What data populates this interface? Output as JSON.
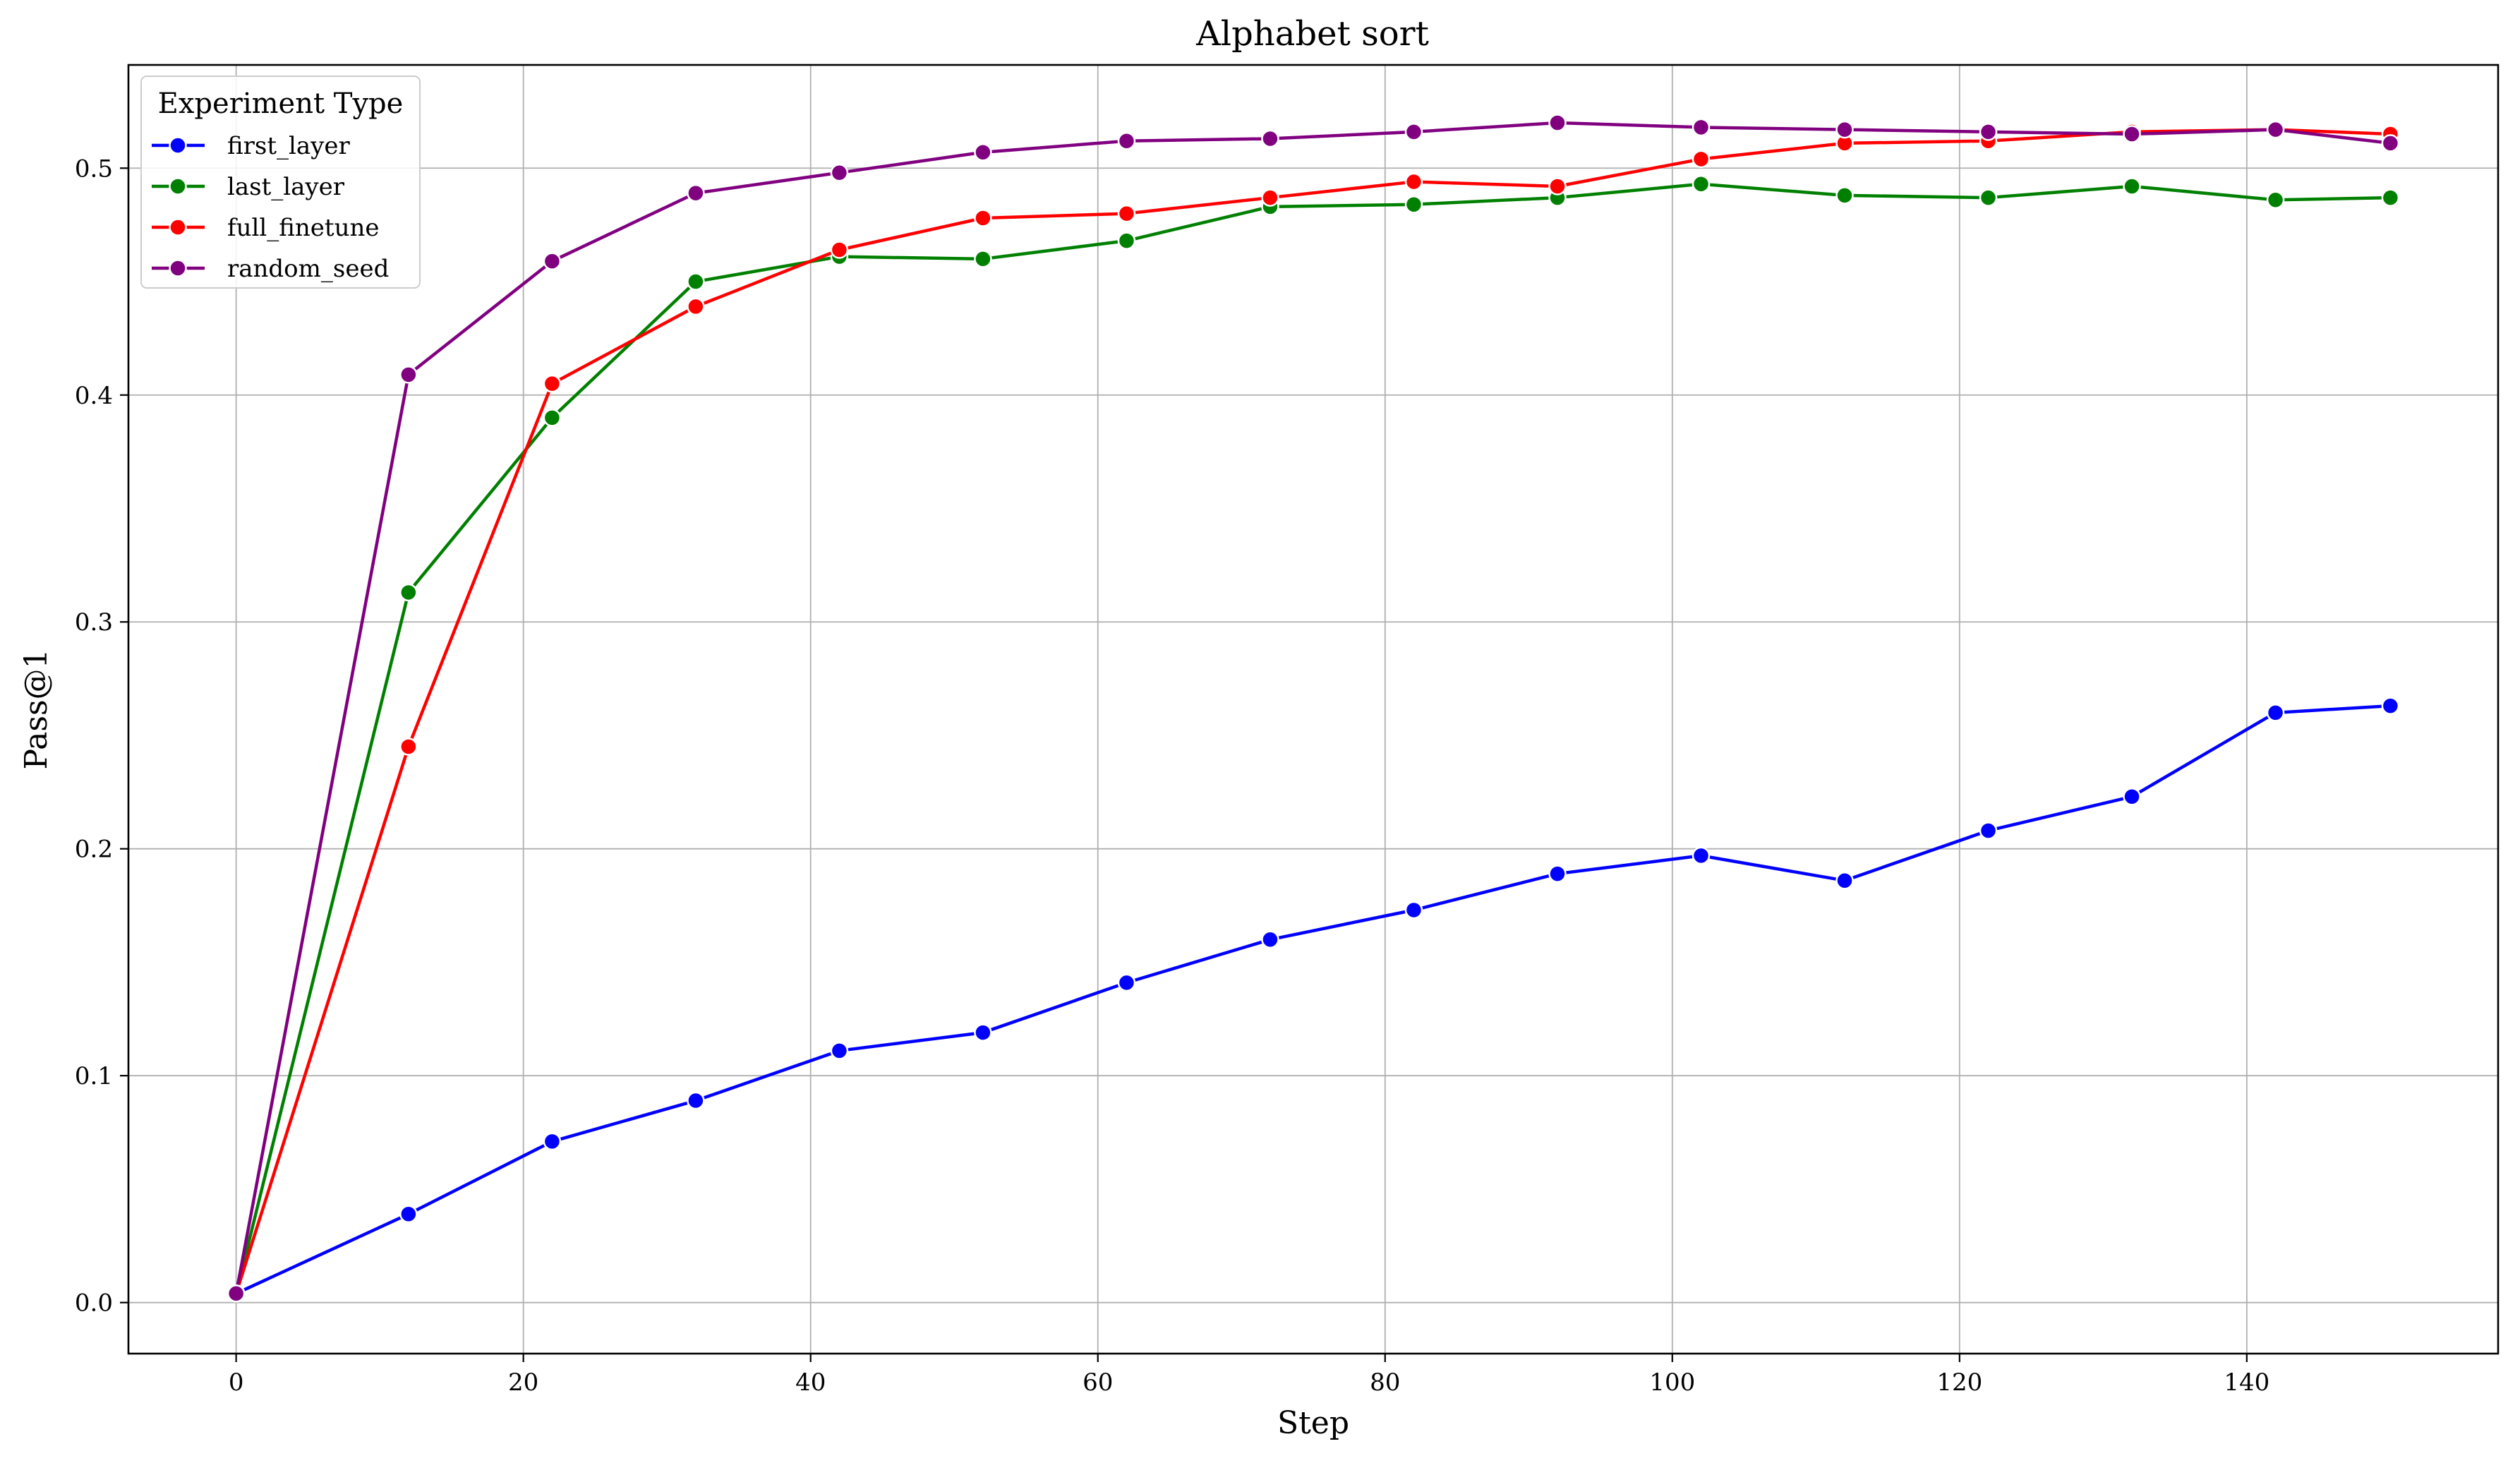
{
  "chart_data": {
    "type": "line",
    "title": "Alphabet sort",
    "xlabel": "Step",
    "ylabel": "Pass@1",
    "xlim": [
      -7.5,
      157.5
    ],
    "ylim": [
      -0.0225,
      0.5455
    ],
    "xticks": [
      0,
      20,
      40,
      60,
      80,
      100,
      120,
      140
    ],
    "yticks": [
      0.0,
      0.1,
      0.2,
      0.3,
      0.4,
      0.5
    ],
    "grid": true,
    "legend": {
      "title": "Experiment Type",
      "placement": "top-left"
    },
    "x": [
      0,
      12,
      22,
      32,
      42,
      52,
      62,
      72,
      82,
      92,
      102,
      112,
      122,
      132,
      142,
      150
    ],
    "series": [
      {
        "name": "first_layer",
        "color": "#0000ff",
        "values": [
          0.004,
          0.039,
          0.071,
          0.089,
          0.111,
          0.119,
          0.141,
          0.16,
          0.173,
          0.189,
          0.197,
          0.186,
          0.208,
          0.223,
          0.26,
          0.263
        ]
      },
      {
        "name": "last_layer",
        "color": "#008000",
        "values": [
          0.004,
          0.313,
          0.39,
          0.45,
          0.461,
          0.46,
          0.468,
          0.483,
          0.484,
          0.487,
          0.493,
          0.488,
          0.487,
          0.492,
          0.486,
          0.487
        ]
      },
      {
        "name": "full_finetune",
        "color": "#ff0000",
        "values": [
          0.004,
          0.245,
          0.405,
          0.439,
          0.464,
          0.478,
          0.48,
          0.487,
          0.494,
          0.492,
          0.504,
          0.511,
          0.512,
          0.516,
          0.517,
          0.515
        ]
      },
      {
        "name": "random_seed",
        "color": "#800080",
        "values": [
          0.004,
          0.409,
          0.459,
          0.489,
          0.498,
          0.507,
          0.512,
          0.513,
          0.516,
          0.52,
          0.518,
          0.517,
          0.516,
          0.515,
          0.517,
          0.511
        ]
      }
    ]
  }
}
